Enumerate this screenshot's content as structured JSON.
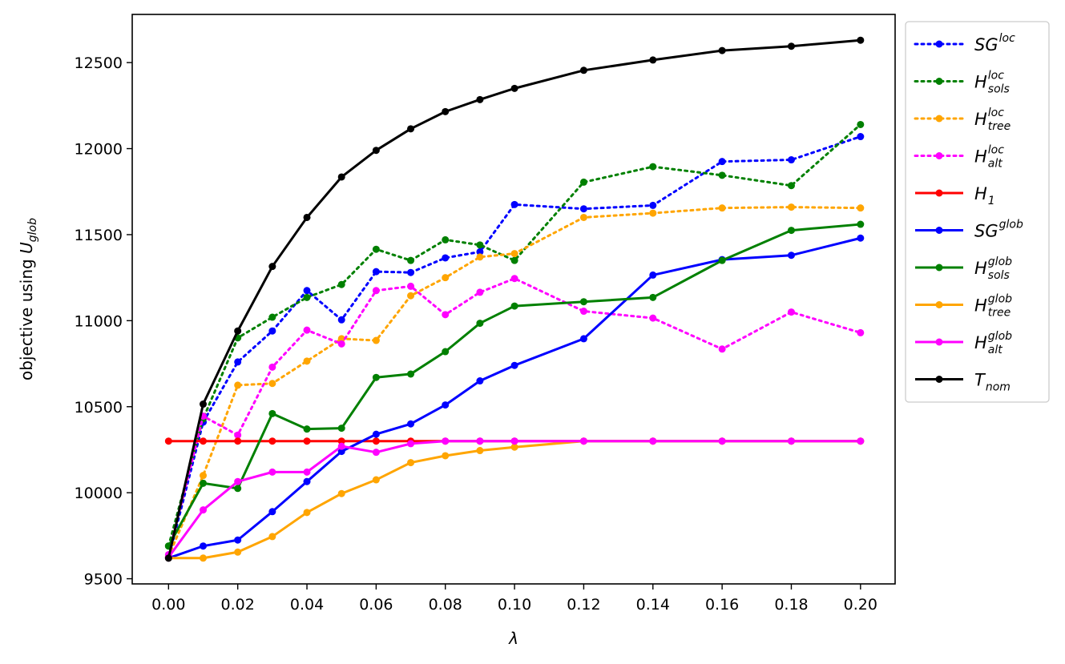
{
  "chart_data": {
    "type": "line",
    "xlabel": "λ",
    "ylabel": {
      "base": "objective using ",
      "var": "U",
      "sub": "glob"
    },
    "x": [
      0.0,
      0.01,
      0.02,
      0.03,
      0.04,
      0.05,
      0.06,
      0.07,
      0.08,
      0.09,
      0.1,
      0.12,
      0.14,
      0.16,
      0.18,
      0.2
    ],
    "xlim": [
      -0.0105,
      0.21
    ],
    "ylim": [
      9470,
      12780
    ],
    "x_ticks": [
      0.0,
      0.02,
      0.04,
      0.06,
      0.08,
      0.1,
      0.12,
      0.14,
      0.16,
      0.18,
      0.2
    ],
    "x_tick_labels": [
      "0.00",
      "0.02",
      "0.04",
      "0.06",
      "0.08",
      "0.10",
      "0.12",
      "0.14",
      "0.16",
      "0.18",
      "0.20"
    ],
    "y_ticks": [
      9500,
      10000,
      10500,
      11000,
      11500,
      12000,
      12500
    ],
    "y_tick_labels": [
      "9500",
      "10000",
      "10500",
      "11000",
      "11500",
      "12000",
      "12500"
    ],
    "grid": false,
    "legend_position": "outside-right-top",
    "series": [
      {
        "name": "SG",
        "sup": "loc",
        "sub": "",
        "color": "#0000ff",
        "style": "dotted",
        "values": [
          9620,
          10410,
          10760,
          10940,
          11175,
          11005,
          11285,
          11280,
          11365,
          11400,
          11675,
          11650,
          11670,
          11925,
          11935,
          12070
        ]
      },
      {
        "name": "H",
        "sup": "loc",
        "sub": "sols",
        "color": "#008000",
        "style": "dotted",
        "values": [
          9690,
          10430,
          10900,
          11020,
          11135,
          11210,
          11415,
          11350,
          11470,
          11440,
          11350,
          11805,
          11895,
          11845,
          11785,
          12140
        ]
      },
      {
        "name": "H",
        "sup": "loc",
        "sub": "tree",
        "color": "#ffa500",
        "style": "dotted",
        "values": [
          9630,
          10100,
          10625,
          10635,
          10765,
          10895,
          10885,
          11145,
          11250,
          11370,
          11390,
          11600,
          11625,
          11655,
          11660,
          11655
        ]
      },
      {
        "name": "H",
        "sup": "loc",
        "sub": "alt",
        "color": "#ff00ff",
        "style": "dotted",
        "values": [
          9640,
          10445,
          10335,
          10730,
          10945,
          10865,
          11175,
          11200,
          11035,
          11165,
          11245,
          11055,
          11015,
          10835,
          11050,
          10930
        ]
      },
      {
        "name": "H",
        "sup": "",
        "sub": "1",
        "color": "#ff0000",
        "style": "solid",
        "values": [
          10300,
          10300,
          10300,
          10300,
          10300,
          10300,
          10300,
          10300,
          10300,
          10300,
          10300,
          10300,
          10300,
          10300,
          10300,
          10300
        ]
      },
      {
        "name": "SG",
        "sup": "glob",
        "sub": "",
        "color": "#0000ff",
        "style": "solid",
        "values": [
          9620,
          9690,
          9725,
          9890,
          10065,
          10240,
          10340,
          10400,
          10510,
          10650,
          10740,
          10895,
          11265,
          11355,
          11380,
          11480
        ]
      },
      {
        "name": "H",
        "sup": "glob",
        "sub": "sols",
        "color": "#008000",
        "style": "solid",
        "values": [
          9690,
          10055,
          10025,
          10460,
          10370,
          10375,
          10670,
          10690,
          10820,
          10985,
          11085,
          11110,
          11135,
          11350,
          11525,
          11560
        ]
      },
      {
        "name": "H",
        "sup": "glob",
        "sub": "tree",
        "color": "#ffa500",
        "style": "solid",
        "values": [
          9620,
          9620,
          9655,
          9745,
          9885,
          9995,
          10075,
          10175,
          10215,
          10245,
          10265,
          10300,
          10300,
          10300,
          10300,
          10300
        ]
      },
      {
        "name": "H",
        "sup": "glob",
        "sub": "alt",
        "color": "#ff00ff",
        "style": "solid",
        "values": [
          9625,
          9900,
          10065,
          10120,
          10120,
          10270,
          10235,
          10285,
          10300,
          10300,
          10300,
          10300,
          10300,
          10300,
          10300,
          10300
        ]
      },
      {
        "name": "T",
        "sup": "",
        "sub": "nom",
        "color": "#000000",
        "style": "solid",
        "values": [
          9620,
          10515,
          10940,
          11315,
          11600,
          11835,
          11990,
          12115,
          12215,
          12285,
          12350,
          12455,
          12515,
          12570,
          12595,
          12630
        ]
      }
    ]
  }
}
